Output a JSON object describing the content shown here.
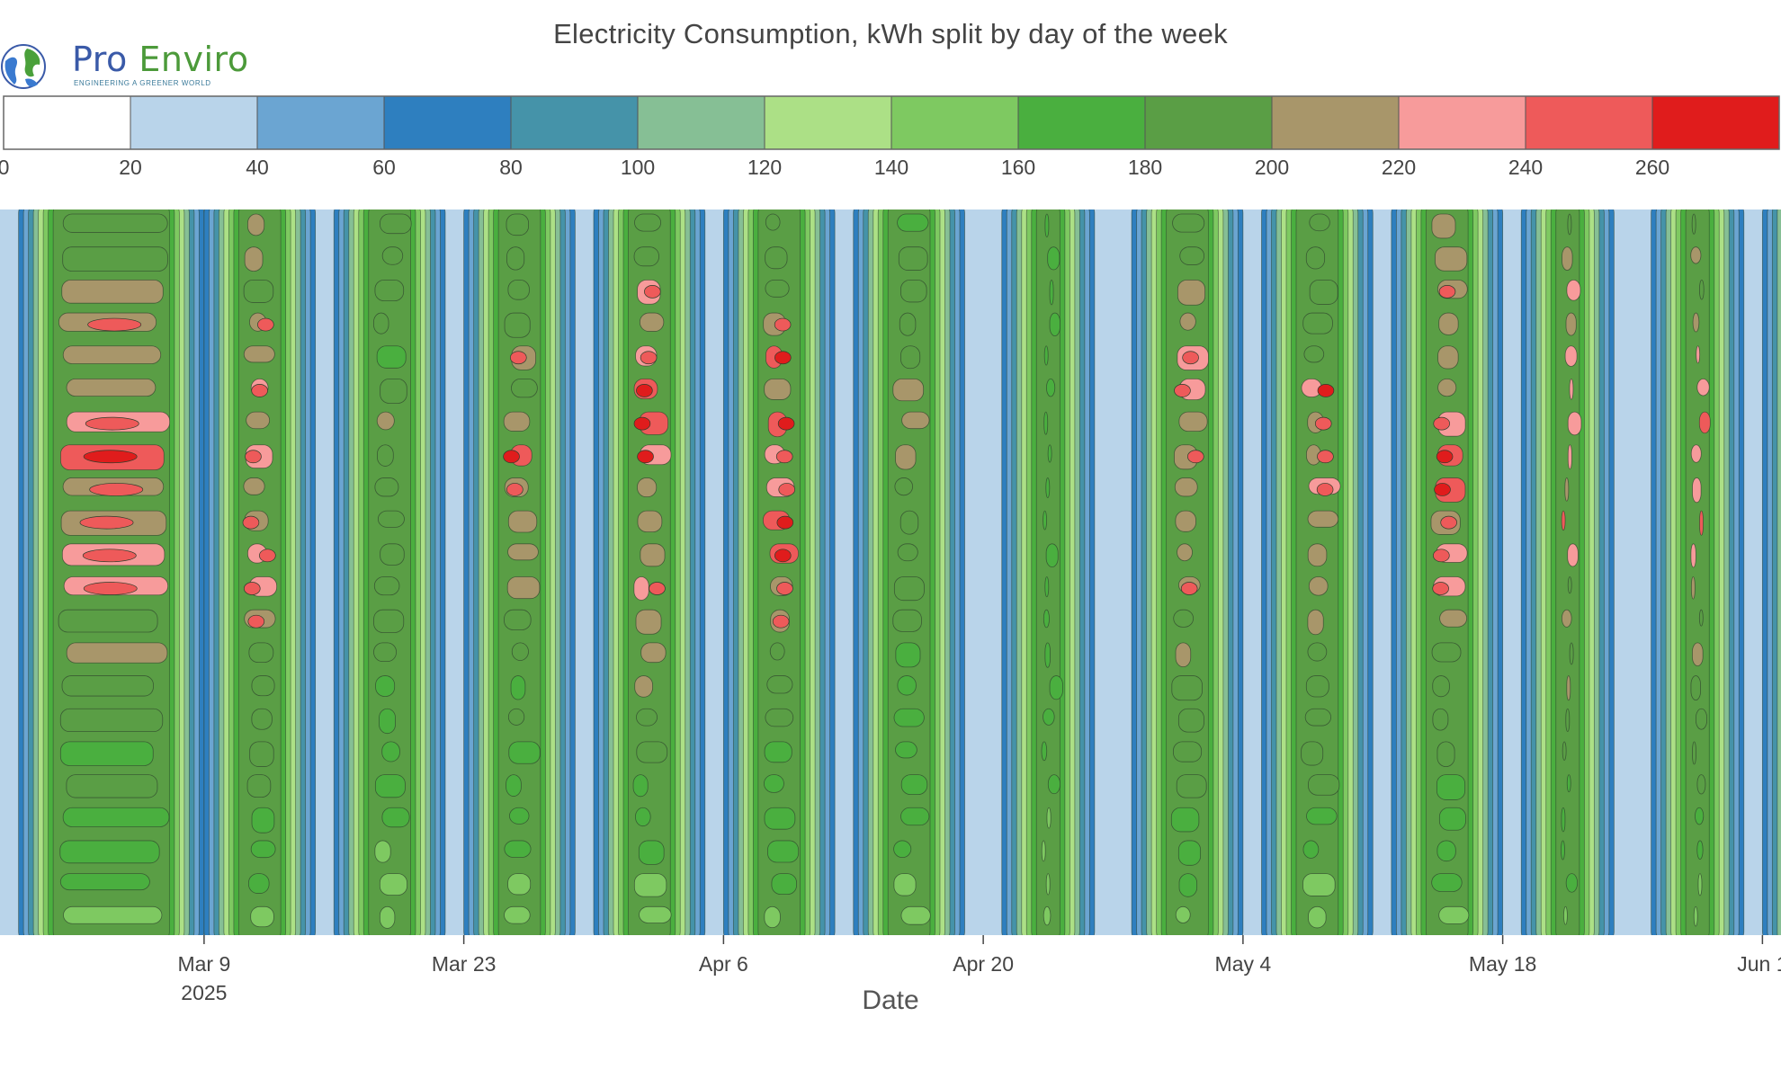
{
  "header": {
    "logo_name_part1": "Pro",
    "logo_name_part2": "Enviro",
    "logo_tagline": "ENGINEERING A GREENER WORLD"
  },
  "chart_data": {
    "type": "heatmap",
    "subtype": "filled-contour",
    "title": "Electricity Consumption, kWh split by day of the week",
    "xlabel": "Date",
    "ylabel": "",
    "colorbar": {
      "levels": [
        0,
        20,
        40,
        60,
        80,
        100,
        120,
        140,
        160,
        180,
        200,
        220,
        240,
        260,
        280
      ],
      "tick_labels": [
        "0",
        "20",
        "40",
        "60",
        "80",
        "100",
        "120",
        "140",
        "160",
        "180",
        "200",
        "220",
        "240",
        "260"
      ],
      "colors": [
        "#ffffff",
        "#b9d4ea",
        "#6ba5d2",
        "#2e7fbf",
        "#4593a9",
        "#86bf95",
        "#ace086",
        "#7ec961",
        "#4aaf3f",
        "#5a9e45",
        "#a8966a",
        "#f79b9b",
        "#ee5a5a",
        "#e01c1c"
      ],
      "placement": "top"
    },
    "x_ticks": [
      {
        "label": "Mar 9",
        "sublabel": "2025",
        "date": "2025-03-09"
      },
      {
        "label": "Mar 23",
        "date": "2025-03-23"
      },
      {
        "label": "Apr 6",
        "date": "2025-04-06"
      },
      {
        "label": "Apr 20",
        "date": "2025-04-20"
      },
      {
        "label": "May 4",
        "date": "2025-05-04"
      },
      {
        "label": "May 18",
        "date": "2025-05-18"
      },
      {
        "label": "Jun 1",
        "date": "2025-06-01"
      }
    ],
    "xlim": [
      "2025-02-26",
      "2025-06-02"
    ],
    "weeks": [
      {
        "start": "2025-02-27",
        "end": "2025-03-08",
        "peak_kWh": 250
      },
      {
        "start": "2025-03-09",
        "end": "2025-03-14",
        "peak_kWh": 250
      },
      {
        "start": "2025-03-16",
        "end": "2025-03-21",
        "peak_kWh": 210
      },
      {
        "start": "2025-03-23",
        "end": "2025-03-28",
        "peak_kWh": 235
      },
      {
        "start": "2025-03-30",
        "end": "2025-04-04",
        "peak_kWh": 255
      },
      {
        "start": "2025-04-06",
        "end": "2025-04-11",
        "peak_kWh": 255
      },
      {
        "start": "2025-04-13",
        "end": "2025-04-18",
        "peak_kWh": 210
      },
      {
        "start": "2025-04-21",
        "end": "2025-04-25",
        "peak_kWh": 180
      },
      {
        "start": "2025-04-28",
        "end": "2025-05-03",
        "peak_kWh": 250
      },
      {
        "start": "2025-05-05",
        "end": "2025-05-10",
        "peak_kWh": 245
      },
      {
        "start": "2025-05-12",
        "end": "2025-05-17",
        "peak_kWh": 245
      },
      {
        "start": "2025-05-19",
        "end": "2025-05-23",
        "peak_kWh": 250
      },
      {
        "start": "2025-05-26",
        "end": "2025-05-30",
        "peak_kWh": 260
      },
      {
        "start": "2025-06-01",
        "end": "2025-06-02",
        "peak_kWh": 160
      }
    ],
    "grid": false
  }
}
